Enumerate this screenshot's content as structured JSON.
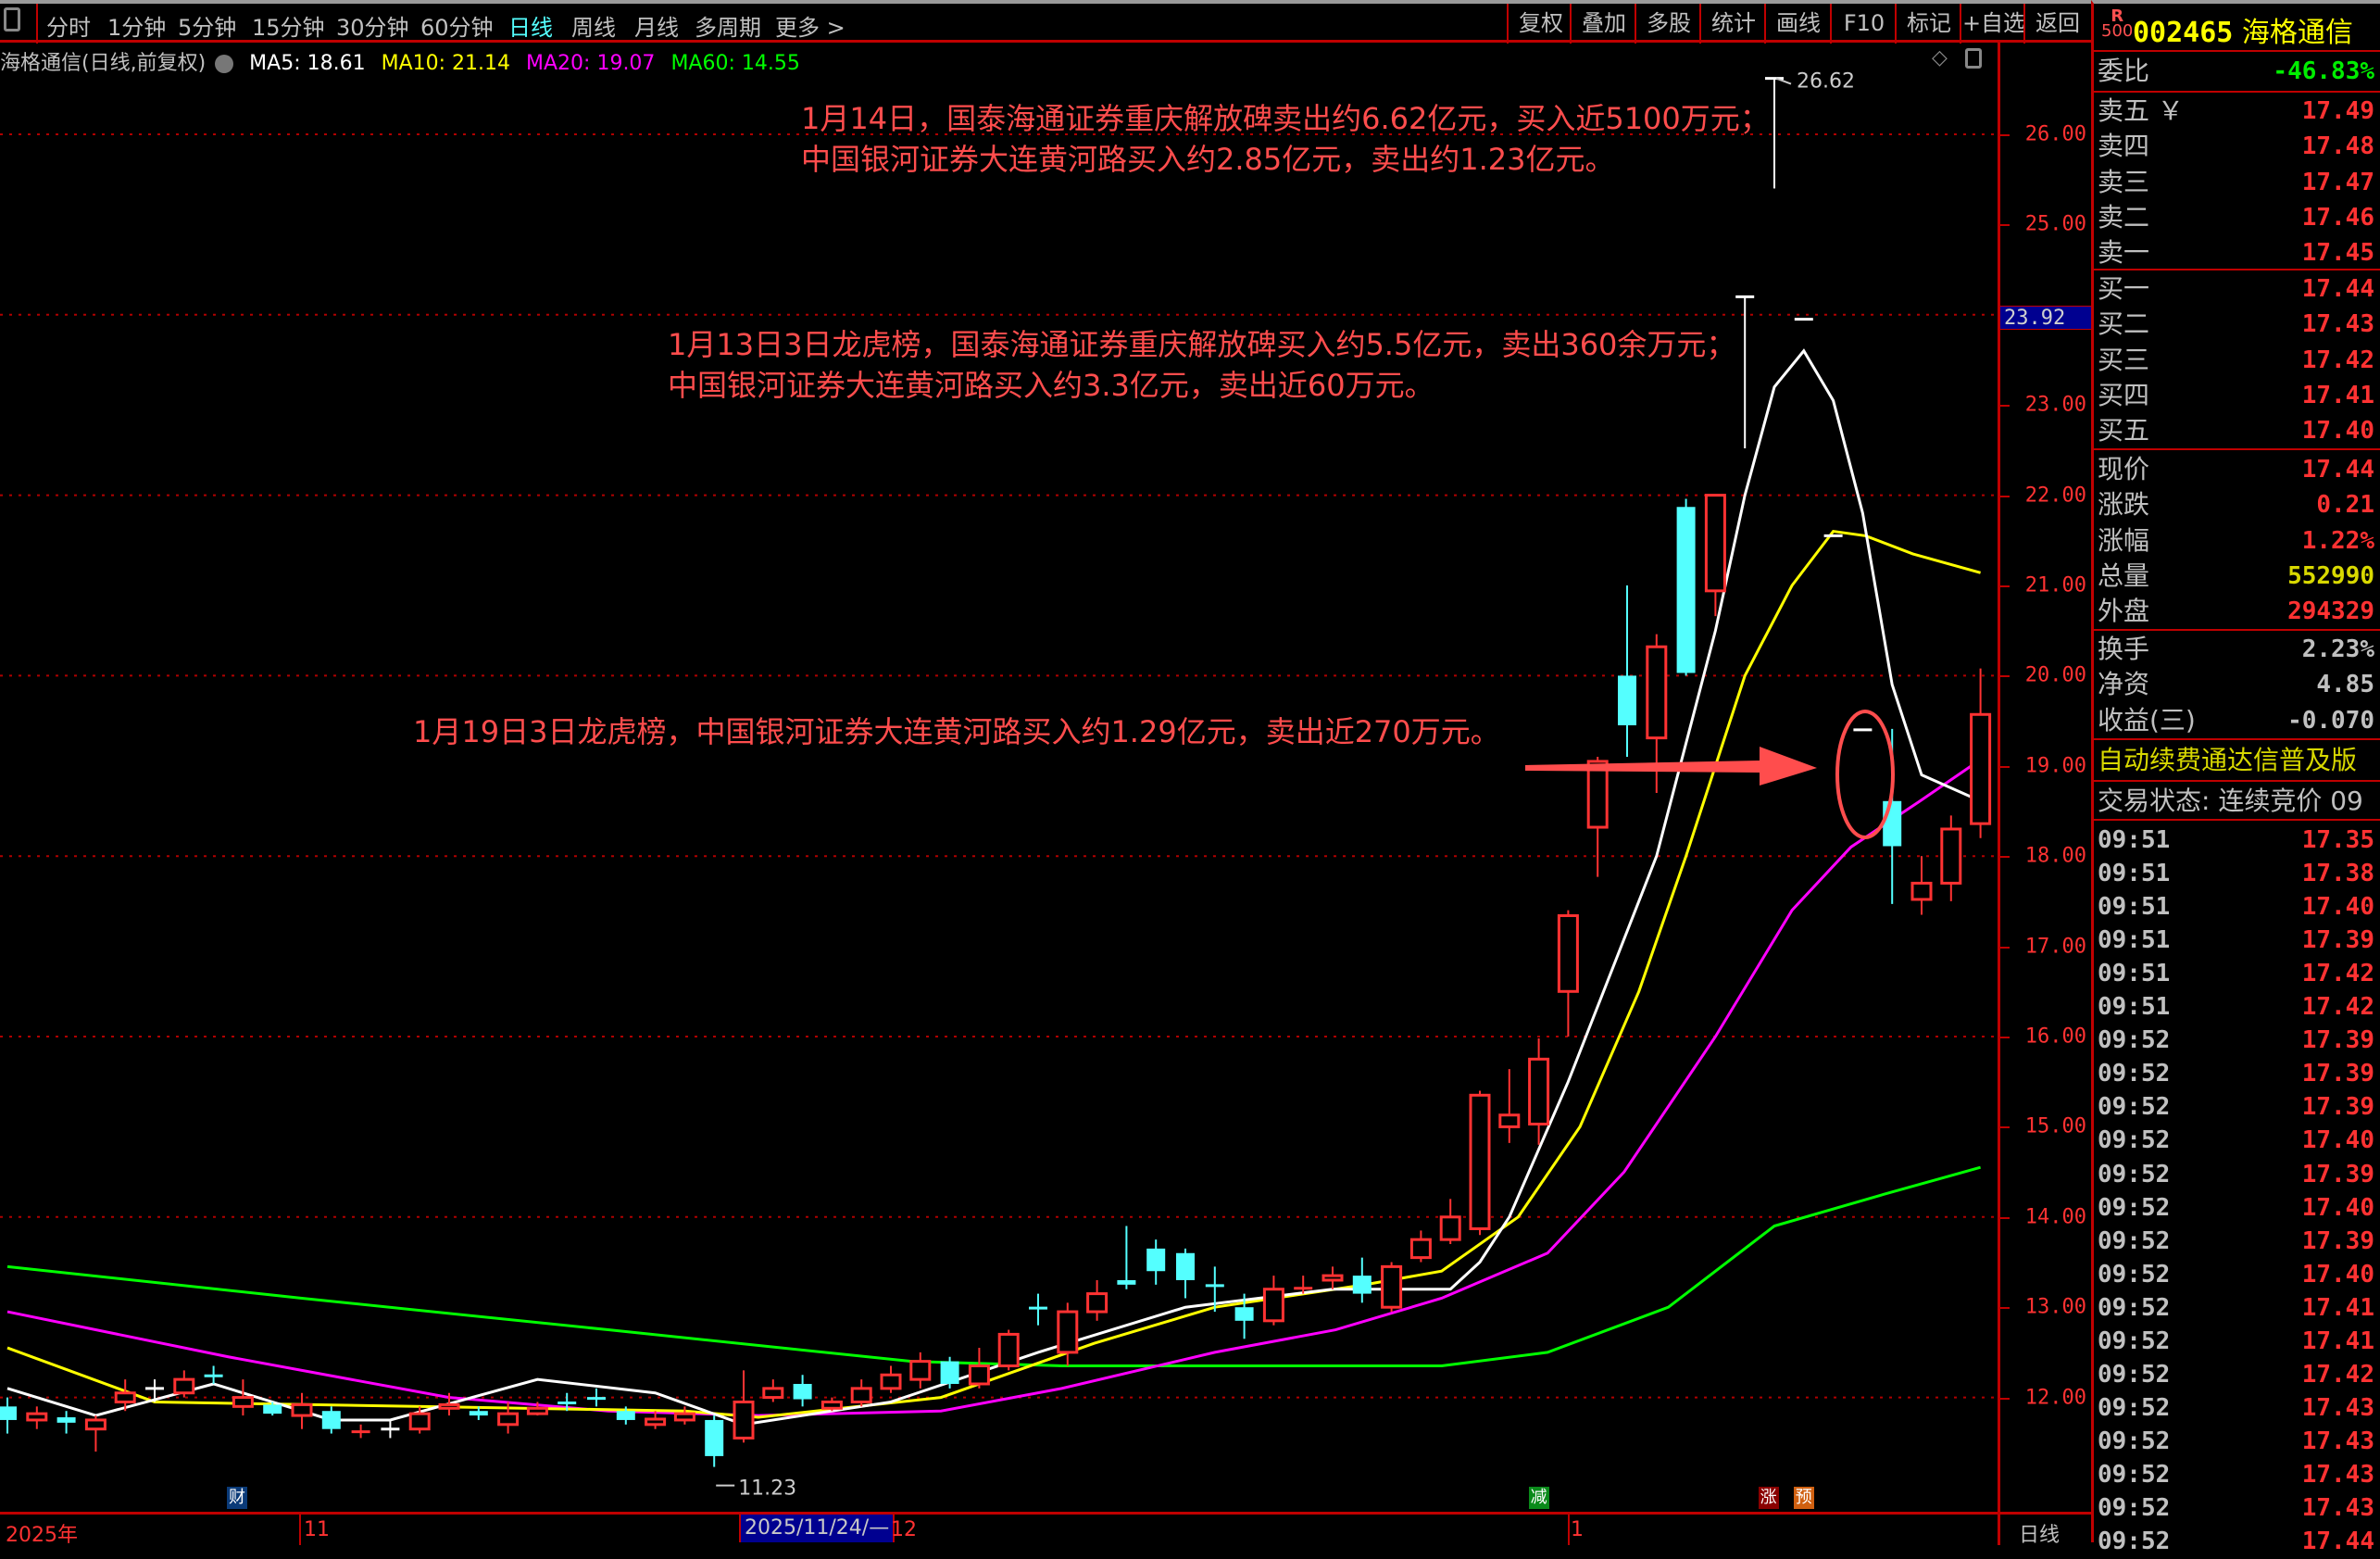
{
  "toolbar": {
    "periods": [
      "分时",
      "1分钟",
      "5分钟",
      "15分钟",
      "30分钟",
      "60分钟",
      "日线",
      "周线",
      "月线",
      "多周期",
      "更多 >"
    ],
    "active_period": "日线",
    "buttons": [
      "复权",
      "叠加",
      "多股",
      "统计",
      "画线",
      "F10",
      "标记",
      "+自选",
      "返回"
    ]
  },
  "info": {
    "title": "海格通信(日线,前复权)",
    "ma5": "MA5: 18.61",
    "ma10": "MA10: 21.14",
    "ma20": "MA20: 19.07",
    "ma60": "MA60: 14.55"
  },
  "annotations": {
    "note1_line1": "1月14日，国泰海通证券重庆解放碑卖出约6.62亿元，买入近5100万元；",
    "note1_line2": "中国银河证券大连黄河路买入约2.85亿元，卖出约1.23亿元。",
    "note2_line1": "1月13日3日龙虎榜，国泰海通证券重庆解放碑买入约5.5亿元，卖出360余万元；",
    "note2_line2": "中国银河证券大连黄河路买入约3.3亿元，卖出近60万元。",
    "note3": "1月19日3日龙虎榜，中国银河证券大连黄河路买入约1.29亿元，卖出近270万元。"
  },
  "chart_data": {
    "type": "candlestick",
    "ylim": [
      11,
      26.9
    ],
    "y_ticks": [
      "26.00",
      "25.00",
      "23.00",
      "22.00",
      "21.00",
      "20.00",
      "19.00",
      "18.00",
      "17.00",
      "16.00",
      "15.00",
      "14.00",
      "13.00",
      "12.00"
    ],
    "grid_prices": [
      26,
      24,
      22,
      20,
      18,
      16,
      14,
      12
    ],
    "crosshair_price": "23.92",
    "high_label": "26.62",
    "low_label": "11.23",
    "x_labels": {
      "year": "2025年",
      "nov": "11",
      "cursor_date": "2025/11/24/—",
      "dec": "12",
      "jan": "1",
      "period": "日线"
    },
    "event_markers": [
      {
        "text": "财",
        "index": 7.8,
        "color": "#0a3a78"
      },
      {
        "text": "减",
        "index": 52,
        "color": "#0a8a1a"
      },
      {
        "text": "涨",
        "index": 59.8,
        "color": "#8a0000"
      },
      {
        "text": "预",
        "index": 61,
        "color": "#d06010"
      }
    ],
    "colors": {
      "up": "#ff3232",
      "down": "#54ffff",
      "flat": "#ffffff",
      "ma5": "#ffffff",
      "ma10": "#ffff00",
      "ma20": "#ff00ff",
      "ma60": "#00ff00",
      "annotation": "#ff4d4d"
    },
    "candles": [
      [
        11.9,
        12.0,
        11.6,
        11.75
      ],
      [
        11.75,
        11.9,
        11.65,
        11.82
      ],
      [
        11.78,
        11.85,
        11.6,
        11.72
      ],
      [
        11.65,
        11.8,
        11.4,
        11.75
      ],
      [
        11.95,
        12.2,
        11.85,
        12.05
      ],
      [
        12.1,
        12.2,
        11.95,
        12.1
      ],
      [
        12.05,
        12.3,
        12.0,
        12.2
      ],
      [
        12.26,
        12.35,
        12.15,
        12.24
      ],
      [
        11.9,
        12.2,
        11.8,
        12.0
      ],
      [
        11.92,
        11.95,
        11.8,
        11.82
      ],
      [
        11.8,
        12.05,
        11.65,
        11.92
      ],
      [
        11.85,
        11.9,
        11.6,
        11.65
      ],
      [
        11.6,
        11.7,
        11.55,
        11.62
      ],
      [
        11.65,
        11.75,
        11.55,
        11.65
      ],
      [
        11.65,
        11.9,
        11.6,
        11.82
      ],
      [
        11.88,
        12.05,
        11.8,
        11.92
      ],
      [
        11.85,
        11.9,
        11.75,
        11.8
      ],
      [
        11.7,
        11.95,
        11.6,
        11.82
      ],
      [
        11.82,
        11.95,
        11.8,
        11.88
      ],
      [
        11.96,
        12.05,
        11.85,
        11.94
      ],
      [
        12.01,
        12.1,
        11.9,
        11.99
      ],
      [
        11.85,
        11.9,
        11.7,
        11.75
      ],
      [
        11.7,
        11.85,
        11.65,
        11.76
      ],
      [
        11.75,
        11.9,
        11.7,
        11.82
      ],
      [
        11.75,
        11.8,
        11.23,
        11.35
      ],
      [
        11.55,
        12.3,
        11.5,
        11.95
      ],
      [
        12.0,
        12.2,
        11.95,
        12.1
      ],
      [
        12.15,
        12.25,
        11.9,
        11.98
      ],
      [
        11.88,
        12.0,
        11.85,
        11.95
      ],
      [
        11.95,
        12.2,
        11.9,
        12.1
      ],
      [
        12.1,
        12.35,
        12.05,
        12.25
      ],
      [
        12.2,
        12.5,
        12.1,
        12.4
      ],
      [
        12.4,
        12.45,
        12.1,
        12.15
      ],
      [
        12.15,
        12.55,
        12.1,
        12.35
      ],
      [
        12.35,
        12.75,
        12.3,
        12.7
      ],
      [
        13.01,
        13.15,
        12.8,
        12.99
      ],
      [
        12.5,
        13.05,
        12.35,
        12.95
      ],
      [
        12.95,
        13.3,
        12.85,
        13.15
      ],
      [
        13.3,
        13.9,
        13.2,
        13.25
      ],
      [
        13.65,
        13.75,
        13.25,
        13.4
      ],
      [
        13.6,
        13.65,
        13.1,
        13.3
      ],
      [
        13.26,
        13.45,
        12.95,
        13.24
      ],
      [
        13.0,
        13.15,
        12.65,
        12.85
      ],
      [
        12.85,
        13.35,
        12.8,
        13.2
      ],
      [
        13.19,
        13.35,
        13.15,
        13.21
      ],
      [
        13.3,
        13.45,
        13.2,
        13.35
      ],
      [
        13.35,
        13.55,
        13.05,
        13.15
      ],
      [
        13.0,
        13.5,
        12.95,
        13.45
      ],
      [
        13.55,
        13.85,
        13.5,
        13.75
      ],
      [
        13.75,
        14.2,
        13.7,
        14.0
      ],
      [
        13.87,
        15.4,
        13.8,
        15.35
      ],
      [
        15.0,
        15.64,
        14.82,
        15.13
      ],
      [
        15.03,
        15.98,
        14.8,
        15.75
      ],
      [
        16.5,
        17.4,
        16.0,
        17.34
      ],
      [
        18.32,
        19.1,
        17.77,
        19.05
      ],
      [
        20.0,
        21.0,
        19.1,
        19.45
      ],
      [
        19.31,
        20.46,
        18.7,
        20.32
      ],
      [
        21.87,
        21.96,
        20.0,
        20.03
      ],
      [
        20.94,
        22.0,
        20.66,
        22.0
      ],
      [
        24.2,
        24.2,
        22.52,
        24.2
      ],
      [
        26.62,
        26.62,
        25.4,
        26.62
      ],
      [
        23.95,
        23.95,
        23.95,
        23.95
      ],
      [
        21.55,
        21.55,
        21.55,
        21.55
      ],
      [
        19.4,
        19.4,
        19.4,
        19.4
      ],
      [
        18.61,
        19.41,
        17.47,
        18.11
      ],
      [
        17.52,
        18.0,
        17.35,
        17.7
      ],
      [
        17.7,
        18.45,
        17.5,
        18.3
      ],
      [
        18.36,
        20.08,
        18.2,
        19.57
      ]
    ],
    "candle_fields": [
      "open",
      "high",
      "low",
      "close"
    ],
    "ma_lines": {
      "ma5": [
        [
          0,
          12.1
        ],
        [
          3,
          11.8
        ],
        [
          7,
          12.15
        ],
        [
          11,
          11.75
        ],
        [
          13,
          11.75
        ],
        [
          18,
          12.2
        ],
        [
          22,
          12.05
        ],
        [
          25,
          11.7
        ],
        [
          30,
          11.95
        ],
        [
          35,
          12.5
        ],
        [
          40,
          13.0
        ],
        [
          45,
          13.2
        ],
        [
          49,
          13.2
        ],
        [
          50,
          13.5
        ],
        [
          51,
          14.0
        ],
        [
          53,
          15.5
        ],
        [
          56,
          18.0
        ],
        [
          58,
          20.5
        ],
        [
          59,
          22.0
        ],
        [
          60,
          23.2
        ],
        [
          61,
          23.6
        ],
        [
          62,
          23.05
        ],
        [
          63,
          21.8
        ],
        [
          64,
          19.9
        ],
        [
          65,
          18.9
        ],
        [
          67,
          18.61
        ]
      ],
      "ma10": [
        [
          0,
          12.55
        ],
        [
          5,
          11.95
        ],
        [
          23,
          11.85
        ],
        [
          25.5,
          11.78
        ],
        [
          31.7,
          12.0
        ],
        [
          36.9,
          12.6
        ],
        [
          41,
          13.0
        ],
        [
          46.1,
          13.25
        ],
        [
          48.7,
          13.4
        ],
        [
          51.3,
          14.0
        ],
        [
          53.4,
          15.0
        ],
        [
          55.4,
          16.5
        ],
        [
          57,
          18.0
        ],
        [
          59,
          20.0
        ],
        [
          60.6,
          21.0
        ],
        [
          62,
          21.6
        ],
        [
          63.1,
          21.55
        ],
        [
          64.7,
          21.35
        ],
        [
          67,
          21.14
        ]
      ],
      "ma20": [
        [
          0,
          12.95
        ],
        [
          7.5,
          12.45
        ],
        [
          15,
          12.0
        ],
        [
          20.4,
          11.85
        ],
        [
          25.5,
          11.8
        ],
        [
          31.7,
          11.85
        ],
        [
          35.8,
          12.1
        ],
        [
          41,
          12.5
        ],
        [
          45.1,
          12.75
        ],
        [
          48.7,
          13.1
        ],
        [
          52.3,
          13.6
        ],
        [
          54.9,
          14.5
        ],
        [
          58,
          16.0
        ],
        [
          60.6,
          17.4
        ],
        [
          62.6,
          18.1
        ],
        [
          64.9,
          18.6
        ],
        [
          67,
          19.07
        ]
      ],
      "ma60": [
        [
          0,
          13.45
        ],
        [
          10,
          13.1
        ],
        [
          20.4,
          12.75
        ],
        [
          30.7,
          12.4
        ],
        [
          35.8,
          12.35
        ],
        [
          48.7,
          12.35
        ],
        [
          52.3,
          12.5
        ],
        [
          56.4,
          13.0
        ],
        [
          60,
          13.9
        ],
        [
          63.7,
          14.25
        ],
        [
          67,
          14.55
        ]
      ]
    }
  },
  "quote": {
    "badge_top": "R",
    "badge_bottom": "500",
    "code": "002465",
    "name": "海格通信",
    "weibi_label": "委比",
    "weibi_value": "-46.83%",
    "sell": [
      {
        "label": "卖五 ￥",
        "value": "17.49"
      },
      {
        "label": "卖四",
        "value": "17.48"
      },
      {
        "label": "卖三",
        "value": "17.47"
      },
      {
        "label": "卖二",
        "value": "17.46"
      },
      {
        "label": "卖一",
        "value": "17.45"
      }
    ],
    "buy": [
      {
        "label": "买一",
        "value": "17.44"
      },
      {
        "label": "买二",
        "value": "17.43"
      },
      {
        "label": "买三",
        "value": "17.42"
      },
      {
        "label": "买四",
        "value": "17.41"
      },
      {
        "label": "买五",
        "value": "17.40"
      }
    ],
    "stats": [
      {
        "label": "现价",
        "value": "17.44",
        "color": "#ff3232"
      },
      {
        "label": "涨跌",
        "value": "0.21",
        "color": "#ff3232"
      },
      {
        "label": "涨幅",
        "value": "1.22%",
        "color": "#ff3232"
      },
      {
        "label": "总量",
        "value": "552990",
        "color": "#d8d800"
      },
      {
        "label": "外盘",
        "value": "294329",
        "color": "#ff3232"
      }
    ],
    "fundamentals": [
      {
        "label": "换手",
        "value": "2.23%"
      },
      {
        "label": "净资",
        "value": "4.85"
      },
      {
        "label": "收益(三)",
        "value": "-0.070"
      }
    ],
    "banner": "自动续费通达信普及版",
    "trade_status": "交易状态: 连续竞价 09",
    "ticks": [
      {
        "time": "09:51",
        "price": "17.35"
      },
      {
        "time": "09:51",
        "price": "17.38"
      },
      {
        "time": "09:51",
        "price": "17.40"
      },
      {
        "time": "09:51",
        "price": "17.39"
      },
      {
        "time": "09:51",
        "price": "17.42"
      },
      {
        "time": "09:51",
        "price": "17.42"
      },
      {
        "time": "09:52",
        "price": "17.39"
      },
      {
        "time": "09:52",
        "price": "17.39"
      },
      {
        "time": "09:52",
        "price": "17.39"
      },
      {
        "time": "09:52",
        "price": "17.40"
      },
      {
        "time": "09:52",
        "price": "17.39"
      },
      {
        "time": "09:52",
        "price": "17.40"
      },
      {
        "time": "09:52",
        "price": "17.39"
      },
      {
        "time": "09:52",
        "price": "17.40"
      },
      {
        "time": "09:52",
        "price": "17.41"
      },
      {
        "time": "09:52",
        "price": "17.41"
      },
      {
        "time": "09:52",
        "price": "17.42"
      },
      {
        "time": "09:52",
        "price": "17.43"
      },
      {
        "time": "09:52",
        "price": "17.43"
      },
      {
        "time": "09:52",
        "price": "17.43"
      },
      {
        "time": "09:52",
        "price": "17.43"
      },
      {
        "time": "09:52",
        "price": "17.44"
      }
    ]
  }
}
